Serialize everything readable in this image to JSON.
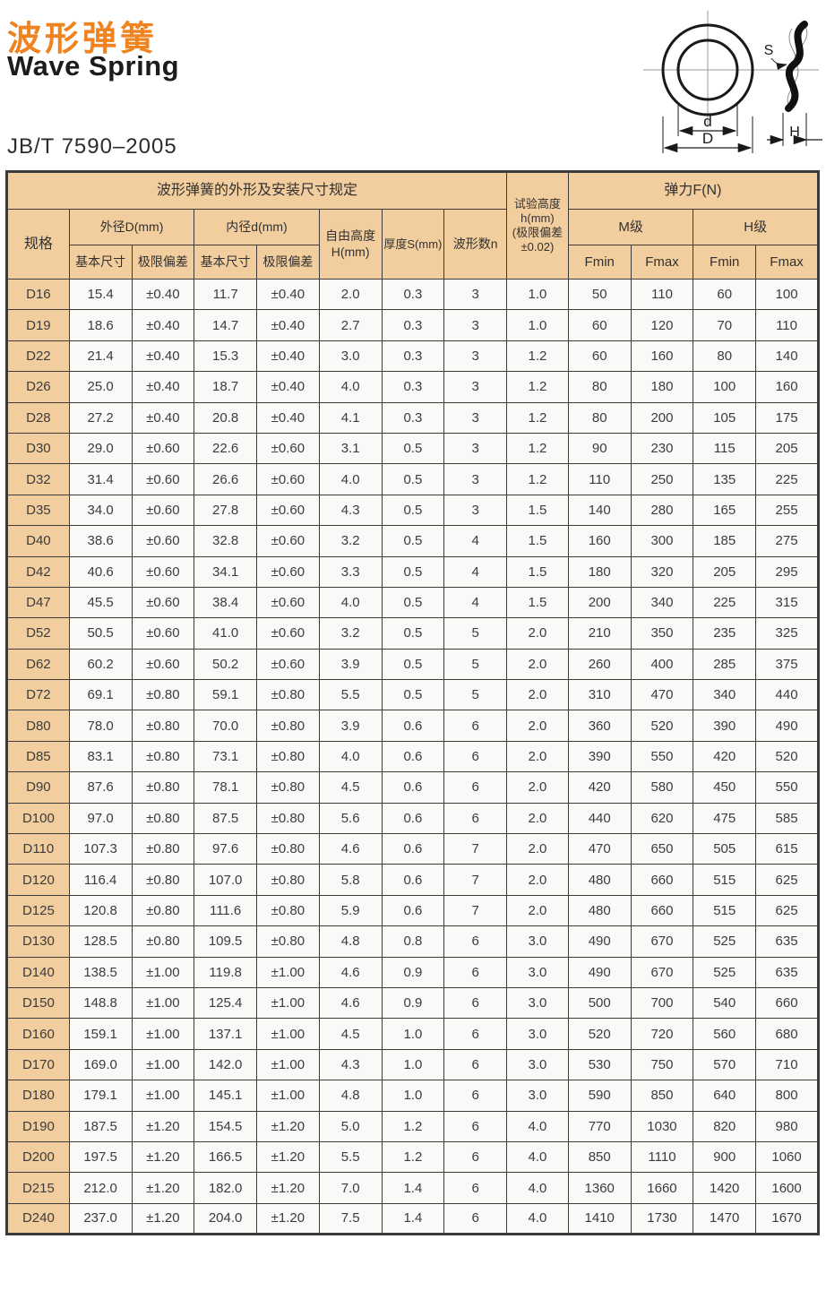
{
  "header": {
    "title_zh": "波形弹簧",
    "title_en": "Wave Spring",
    "standard": "JB/T 7590–2005"
  },
  "diagram": {
    "labels": {
      "inner_diameter": "d",
      "outer_diameter": "D",
      "thickness": "S",
      "height": "H"
    }
  },
  "table": {
    "header": {
      "group_title": "波形弹簧的外形及安装尺寸规定",
      "test_height": "试验高度\nh(mm)\n(极限偏差\n±0.02)",
      "force": "弹力F(N)",
      "spec": "规格",
      "outer_d": "外径D(mm)",
      "inner_d": "内径d(mm)",
      "free_height": "自由高度\nH(mm)",
      "thickness": "厚度S(mm)",
      "wave_count": "波形数n",
      "m_grade": "M级",
      "h_grade": "H级",
      "basic_size": "基本尺寸",
      "limit_dev": "极限偏差",
      "fmin": "Fmin",
      "fmax": "Fmax"
    },
    "rows": [
      [
        "D16",
        "15.4",
        "±0.40",
        "11.7",
        "±0.40",
        "2.0",
        "0.3",
        "3",
        "1.0",
        "50",
        "110",
        "60",
        "100"
      ],
      [
        "D19",
        "18.6",
        "±0.40",
        "14.7",
        "±0.40",
        "2.7",
        "0.3",
        "3",
        "1.0",
        "60",
        "120",
        "70",
        "110"
      ],
      [
        "D22",
        "21.4",
        "±0.40",
        "15.3",
        "±0.40",
        "3.0",
        "0.3",
        "3",
        "1.2",
        "60",
        "160",
        "80",
        "140"
      ],
      [
        "D26",
        "25.0",
        "±0.40",
        "18.7",
        "±0.40",
        "4.0",
        "0.3",
        "3",
        "1.2",
        "80",
        "180",
        "100",
        "160"
      ],
      [
        "D28",
        "27.2",
        "±0.40",
        "20.8",
        "±0.40",
        "4.1",
        "0.3",
        "3",
        "1.2",
        "80",
        "200",
        "105",
        "175"
      ],
      [
        "D30",
        "29.0",
        "±0.60",
        "22.6",
        "±0.60",
        "3.1",
        "0.5",
        "3",
        "1.2",
        "90",
        "230",
        "115",
        "205"
      ],
      [
        "D32",
        "31.4",
        "±0.60",
        "26.6",
        "±0.60",
        "4.0",
        "0.5",
        "3",
        "1.2",
        "110",
        "250",
        "135",
        "225"
      ],
      [
        "D35",
        "34.0",
        "±0.60",
        "27.8",
        "±0.60",
        "4.3",
        "0.5",
        "3",
        "1.5",
        "140",
        "280",
        "165",
        "255"
      ],
      [
        "D40",
        "38.6",
        "±0.60",
        "32.8",
        "±0.60",
        "3.2",
        "0.5",
        "4",
        "1.5",
        "160",
        "300",
        "185",
        "275"
      ],
      [
        "D42",
        "40.6",
        "±0.60",
        "34.1",
        "±0.60",
        "3.3",
        "0.5",
        "4",
        "1.5",
        "180",
        "320",
        "205",
        "295"
      ],
      [
        "D47",
        "45.5",
        "±0.60",
        "38.4",
        "±0.60",
        "4.0",
        "0.5",
        "4",
        "1.5",
        "200",
        "340",
        "225",
        "315"
      ],
      [
        "D52",
        "50.5",
        "±0.60",
        "41.0",
        "±0.60",
        "3.2",
        "0.5",
        "5",
        "2.0",
        "210",
        "350",
        "235",
        "325"
      ],
      [
        "D62",
        "60.2",
        "±0.60",
        "50.2",
        "±0.60",
        "3.9",
        "0.5",
        "5",
        "2.0",
        "260",
        "400",
        "285",
        "375"
      ],
      [
        "D72",
        "69.1",
        "±0.80",
        "59.1",
        "±0.80",
        "5.5",
        "0.5",
        "5",
        "2.0",
        "310",
        "470",
        "340",
        "440"
      ],
      [
        "D80",
        "78.0",
        "±0.80",
        "70.0",
        "±0.80",
        "3.9",
        "0.6",
        "6",
        "2.0",
        "360",
        "520",
        "390",
        "490"
      ],
      [
        "D85",
        "83.1",
        "±0.80",
        "73.1",
        "±0.80",
        "4.0",
        "0.6",
        "6",
        "2.0",
        "390",
        "550",
        "420",
        "520"
      ],
      [
        "D90",
        "87.6",
        "±0.80",
        "78.1",
        "±0.80",
        "4.5",
        "0.6",
        "6",
        "2.0",
        "420",
        "580",
        "450",
        "550"
      ],
      [
        "D100",
        "97.0",
        "±0.80",
        "87.5",
        "±0.80",
        "5.6",
        "0.6",
        "6",
        "2.0",
        "440",
        "620",
        "475",
        "585"
      ],
      [
        "D110",
        "107.3",
        "±0.80",
        "97.6",
        "±0.80",
        "4.6",
        "0.6",
        "7",
        "2.0",
        "470",
        "650",
        "505",
        "615"
      ],
      [
        "D120",
        "116.4",
        "±0.80",
        "107.0",
        "±0.80",
        "5.8",
        "0.6",
        "7",
        "2.0",
        "480",
        "660",
        "515",
        "625"
      ],
      [
        "D125",
        "120.8",
        "±0.80",
        "111.6",
        "±0.80",
        "5.9",
        "0.6",
        "7",
        "2.0",
        "480",
        "660",
        "515",
        "625"
      ],
      [
        "D130",
        "128.5",
        "±0.80",
        "109.5",
        "±0.80",
        "4.8",
        "0.8",
        "6",
        "3.0",
        "490",
        "670",
        "525",
        "635"
      ],
      [
        "D140",
        "138.5",
        "±1.00",
        "119.8",
        "±1.00",
        "4.6",
        "0.9",
        "6",
        "3.0",
        "490",
        "670",
        "525",
        "635"
      ],
      [
        "D150",
        "148.8",
        "±1.00",
        "125.4",
        "±1.00",
        "4.6",
        "0.9",
        "6",
        "3.0",
        "500",
        "700",
        "540",
        "660"
      ],
      [
        "D160",
        "159.1",
        "±1.00",
        "137.1",
        "±1.00",
        "4.5",
        "1.0",
        "6",
        "3.0",
        "520",
        "720",
        "560",
        "680"
      ],
      [
        "D170",
        "169.0",
        "±1.00",
        "142.0",
        "±1.00",
        "4.3",
        "1.0",
        "6",
        "3.0",
        "530",
        "750",
        "570",
        "710"
      ],
      [
        "D180",
        "179.1",
        "±1.00",
        "145.1",
        "±1.00",
        "4.8",
        "1.0",
        "6",
        "3.0",
        "590",
        "850",
        "640",
        "800"
      ],
      [
        "D190",
        "187.5",
        "±1.20",
        "154.5",
        "±1.20",
        "5.0",
        "1.2",
        "6",
        "4.0",
        "770",
        "1030",
        "820",
        "980"
      ],
      [
        "D200",
        "197.5",
        "±1.20",
        "166.5",
        "±1.20",
        "5.5",
        "1.2",
        "6",
        "4.0",
        "850",
        "1110",
        "900",
        "1060"
      ],
      [
        "D215",
        "212.0",
        "±1.20",
        "182.0",
        "±1.20",
        "7.0",
        "1.4",
        "6",
        "4.0",
        "1360",
        "1660",
        "1420",
        "1600"
      ],
      [
        "D240",
        "237.0",
        "±1.20",
        "204.0",
        "±1.20",
        "7.5",
        "1.4",
        "6",
        "4.0",
        "1410",
        "1730",
        "1470",
        "1670"
      ]
    ]
  }
}
